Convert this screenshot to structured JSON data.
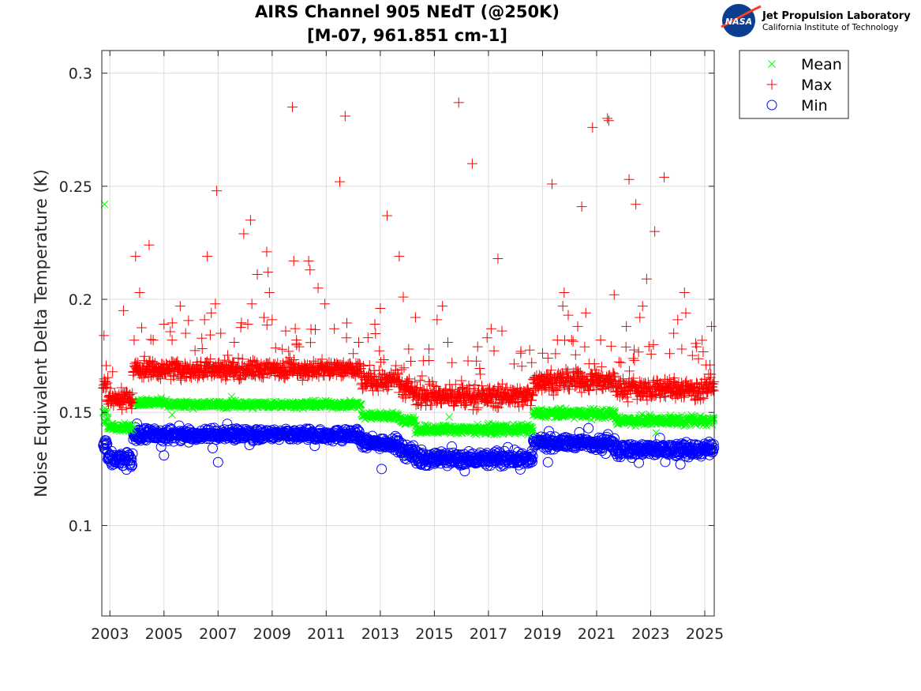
{
  "logo": {
    "agency": "NASA",
    "org_name": "Jet Propulsion Laboratory",
    "org_sub": "California Institute of Technology"
  },
  "chart_data": {
    "type": "scatter",
    "title": [
      "AIRS Channel 905 NEdT (@250K)",
      "[M-07, 961.851 cm-1]"
    ],
    "xlabel": "",
    "ylabel": "Noise Equivalent Delta Temperature (K)",
    "xlim": [
      2002.7,
      2025.35
    ],
    "ylim": [
      0.06,
      0.31
    ],
    "x_ticks": [
      2003,
      2005,
      2007,
      2009,
      2011,
      2013,
      2015,
      2017,
      2019,
      2021,
      2023,
      2025
    ],
    "x_tick_labels": [
      "2003",
      "2005",
      "2007",
      "2009",
      "2011",
      "2013",
      "2015",
      "2017",
      "2019",
      "2021",
      "2023",
      "2025"
    ],
    "y_ticks": [
      0.1,
      0.15,
      0.2,
      0.25,
      0.3
    ],
    "y_tick_labels": [
      "0.1",
      "0.15",
      "0.2",
      "0.25",
      "0.3"
    ],
    "grid": true,
    "legend_position": "top-right-outside",
    "series": [
      {
        "name": "Mean",
        "marker": "x",
        "color": "#00ff00",
        "levels": [
          {
            "x0": 2002.75,
            "x1": 2002.92,
            "y": 0.149,
            "spread": 0.004
          },
          {
            "x0": 2002.92,
            "x1": 2003.85,
            "y": 0.1435,
            "spread": 0.0015
          },
          {
            "x0": 2003.85,
            "x1": 2005.1,
            "y": 0.1545,
            "spread": 0.0015
          },
          {
            "x0": 2005.1,
            "x1": 2012.3,
            "y": 0.1535,
            "spread": 0.0015
          },
          {
            "x0": 2012.3,
            "x1": 2013.7,
            "y": 0.1485,
            "spread": 0.0015
          },
          {
            "x0": 2013.7,
            "x1": 2014.3,
            "y": 0.1465,
            "spread": 0.002
          },
          {
            "x0": 2014.3,
            "x1": 2018.65,
            "y": 0.1425,
            "spread": 0.002
          },
          {
            "x0": 2018.65,
            "x1": 2021.7,
            "y": 0.1495,
            "spread": 0.002
          },
          {
            "x0": 2021.7,
            "x1": 2025.35,
            "y": 0.1465,
            "spread": 0.002
          }
        ],
        "outliers": [
          [
            2002.8,
            0.242
          ],
          [
            2007.5,
            0.157
          ],
          [
            2015.55,
            0.148
          ],
          [
            2023.2,
            0.141
          ],
          [
            2005.3,
            0.149
          ],
          [
            2011.0,
            0.155
          ]
        ]
      },
      {
        "name": "Max",
        "marker": "+",
        "color": "#ff0000",
        "levels": [
          {
            "x0": 2002.75,
            "x1": 2002.92,
            "y": 0.163,
            "spread": 0.006
          },
          {
            "x0": 2002.92,
            "x1": 2003.85,
            "y": 0.156,
            "spread": 0.004
          },
          {
            "x0": 2003.85,
            "x1": 2012.3,
            "y": 0.169,
            "spread": 0.004
          },
          {
            "x0": 2012.3,
            "x1": 2013.7,
            "y": 0.164,
            "spread": 0.004
          },
          {
            "x0": 2013.7,
            "x1": 2014.3,
            "y": 0.16,
            "spread": 0.005
          },
          {
            "x0": 2014.3,
            "x1": 2018.65,
            "y": 0.157,
            "spread": 0.0045
          },
          {
            "x0": 2018.65,
            "x1": 2021.7,
            "y": 0.164,
            "spread": 0.0045
          },
          {
            "x0": 2021.7,
            "x1": 2025.35,
            "y": 0.1605,
            "spread": 0.0045
          }
        ],
        "outliers": [
          [
            2002.78,
            0.184
          ],
          [
            2003.1,
            0.168
          ],
          [
            2003.5,
            0.195
          ],
          [
            2003.95,
            0.219
          ],
          [
            2004.1,
            0.203
          ],
          [
            2004.45,
            0.224
          ],
          [
            2004.6,
            0.182
          ],
          [
            2005.0,
            0.189
          ],
          [
            2005.3,
            0.182
          ],
          [
            2005.6,
            0.197
          ],
          [
            2005.8,
            0.185
          ],
          [
            2006.5,
            0.191
          ],
          [
            2006.6,
            0.219
          ],
          [
            2006.75,
            0.194
          ],
          [
            2006.9,
            0.198
          ],
          [
            2006.95,
            0.248
          ],
          [
            2007.1,
            0.185
          ],
          [
            2007.6,
            0.181
          ],
          [
            2007.95,
            0.229
          ],
          [
            2008.1,
            0.189
          ],
          [
            2008.2,
            0.235
          ],
          [
            2008.25,
            0.198
          ],
          [
            2008.45,
            0.211
          ],
          [
            2008.7,
            0.192
          ],
          [
            2008.8,
            0.221
          ],
          [
            2008.85,
            0.212
          ],
          [
            2008.9,
            0.203
          ],
          [
            2009.0,
            0.191
          ],
          [
            2009.5,
            0.186
          ],
          [
            2009.75,
            0.285
          ],
          [
            2009.8,
            0.217
          ],
          [
            2009.9,
            0.182
          ],
          [
            2010.0,
            0.179
          ],
          [
            2010.35,
            0.217
          ],
          [
            2010.4,
            0.213
          ],
          [
            2010.7,
            0.205
          ],
          [
            2010.95,
            0.198
          ],
          [
            2011.3,
            0.187
          ],
          [
            2011.5,
            0.252
          ],
          [
            2011.7,
            0.281
          ],
          [
            2011.75,
            0.183
          ],
          [
            2012.0,
            0.176
          ],
          [
            2012.2,
            0.181
          ],
          [
            2012.8,
            0.189
          ],
          [
            2013.0,
            0.196
          ],
          [
            2013.25,
            0.237
          ],
          [
            2013.7,
            0.219
          ],
          [
            2013.85,
            0.201
          ],
          [
            2014.05,
            0.178
          ],
          [
            2014.3,
            0.192
          ],
          [
            2014.8,
            0.178
          ],
          [
            2015.1,
            0.191
          ],
          [
            2015.3,
            0.197
          ],
          [
            2015.5,
            0.181
          ],
          [
            2015.65,
            0.172
          ],
          [
            2015.9,
            0.287
          ],
          [
            2016.4,
            0.26
          ],
          [
            2016.6,
            0.179
          ],
          [
            2016.95,
            0.183
          ],
          [
            2017.1,
            0.187
          ],
          [
            2017.35,
            0.218
          ],
          [
            2017.5,
            0.186
          ],
          [
            2018.2,
            0.177
          ],
          [
            2018.6,
            0.172
          ],
          [
            2019.2,
            0.174
          ],
          [
            2019.35,
            0.251
          ],
          [
            2019.55,
            0.182
          ],
          [
            2019.75,
            0.197
          ],
          [
            2019.8,
            0.203
          ],
          [
            2019.95,
            0.193
          ],
          [
            2020.3,
            0.188
          ],
          [
            2020.45,
            0.241
          ],
          [
            2020.6,
            0.194
          ],
          [
            2020.85,
            0.276
          ],
          [
            2021.15,
            0.182
          ],
          [
            2021.4,
            0.28
          ],
          [
            2021.45,
            0.279
          ],
          [
            2021.65,
            0.202
          ],
          [
            2021.9,
            0.172
          ],
          [
            2022.1,
            0.188
          ],
          [
            2022.2,
            0.253
          ],
          [
            2022.4,
            0.173
          ],
          [
            2022.45,
            0.242
          ],
          [
            2022.6,
            0.192
          ],
          [
            2022.7,
            0.197
          ],
          [
            2022.85,
            0.209
          ],
          [
            2023.1,
            0.18
          ],
          [
            2023.15,
            0.23
          ],
          [
            2023.5,
            0.254
          ],
          [
            2023.7,
            0.176
          ],
          [
            2023.85,
            0.185
          ],
          [
            2024.0,
            0.191
          ],
          [
            2024.15,
            0.178
          ],
          [
            2024.25,
            0.203
          ],
          [
            2024.3,
            0.194
          ],
          [
            2024.7,
            0.179
          ],
          [
            2025.05,
            0.171
          ],
          [
            2025.25,
            0.188
          ]
        ]
      },
      {
        "name": "Min",
        "marker": "o",
        "color": "#0000ff",
        "levels": [
          {
            "x0": 2002.75,
            "x1": 2002.92,
            "y": 0.135,
            "spread": 0.004
          },
          {
            "x0": 2002.92,
            "x1": 2003.85,
            "y": 0.1295,
            "spread": 0.003
          },
          {
            "x0": 2003.85,
            "x1": 2012.3,
            "y": 0.14,
            "spread": 0.0025
          },
          {
            "x0": 2012.3,
            "x1": 2013.7,
            "y": 0.1365,
            "spread": 0.0025
          },
          {
            "x0": 2013.7,
            "x1": 2014.3,
            "y": 0.133,
            "spread": 0.003
          },
          {
            "x0": 2014.3,
            "x1": 2018.65,
            "y": 0.1295,
            "spread": 0.003
          },
          {
            "x0": 2018.65,
            "x1": 2021.7,
            "y": 0.1365,
            "spread": 0.0025
          },
          {
            "x0": 2021.7,
            "x1": 2025.35,
            "y": 0.1335,
            "spread": 0.003
          }
        ],
        "outliers": [
          [
            2007.0,
            0.128
          ],
          [
            2013.05,
            0.125
          ],
          [
            2004.0,
            0.145
          ],
          [
            2005.0,
            0.131
          ],
          [
            2019.2,
            0.128
          ],
          [
            2020.7,
            0.143
          ],
          [
            2024.1,
            0.127
          ]
        ]
      }
    ]
  }
}
